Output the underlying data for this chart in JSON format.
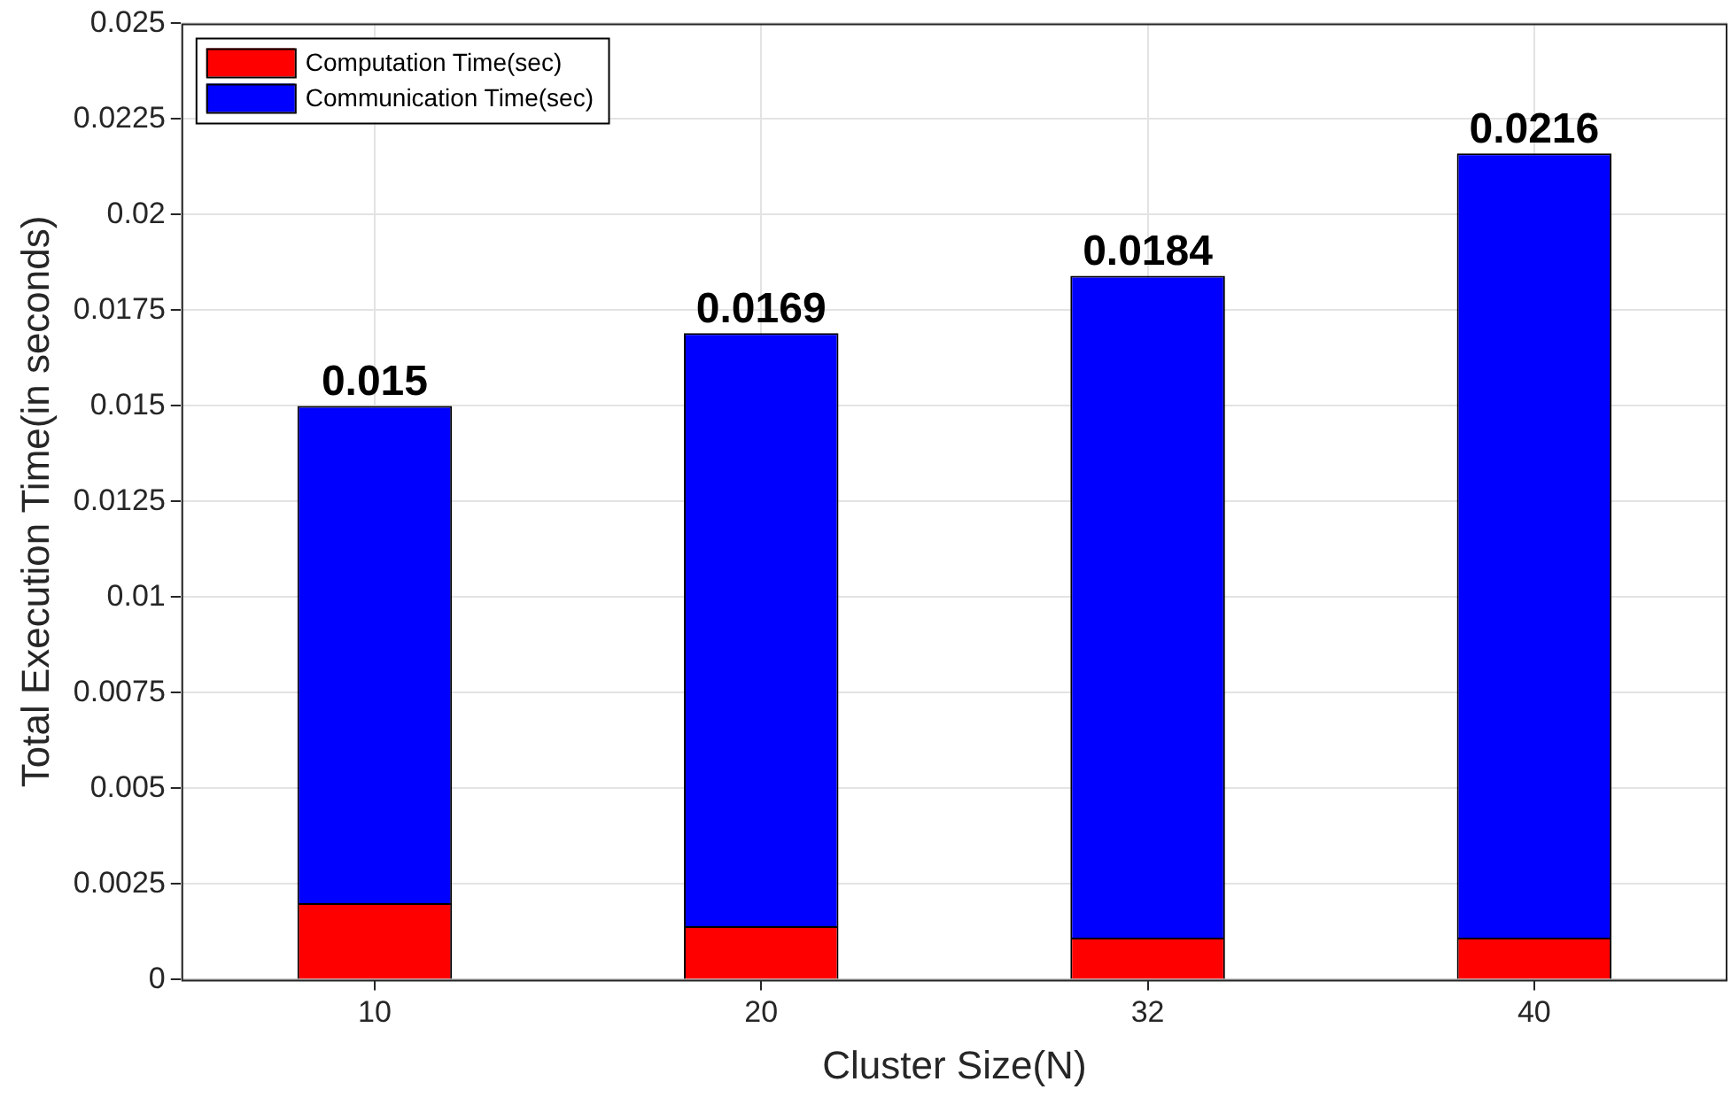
{
  "chart_data": {
    "type": "bar",
    "stacked": true,
    "xlabel": "Cluster Size(N)",
    "ylabel": "Total Execution Time(in seconds)",
    "categories": [
      "10",
      "20",
      "32",
      "40"
    ],
    "series": [
      {
        "name": "Computation Time(sec)",
        "color": "#ff0000",
        "values": [
          0.002,
          0.0014,
          0.0011,
          0.0011
        ]
      },
      {
        "name": "Communication Time(sec)",
        "color": "#0000ff",
        "values": [
          0.013,
          0.0155,
          0.0173,
          0.0205
        ]
      }
    ],
    "totals": [
      "0.015",
      "0.0169",
      "0.0184",
      "0.0216"
    ],
    "ylim": [
      0,
      0.025
    ],
    "yticks": [
      0,
      0.0025,
      0.005,
      0.0075,
      0.01,
      0.0125,
      0.015,
      0.0175,
      0.02,
      0.0225,
      0.025
    ],
    "grid": true,
    "legend": "top left"
  }
}
